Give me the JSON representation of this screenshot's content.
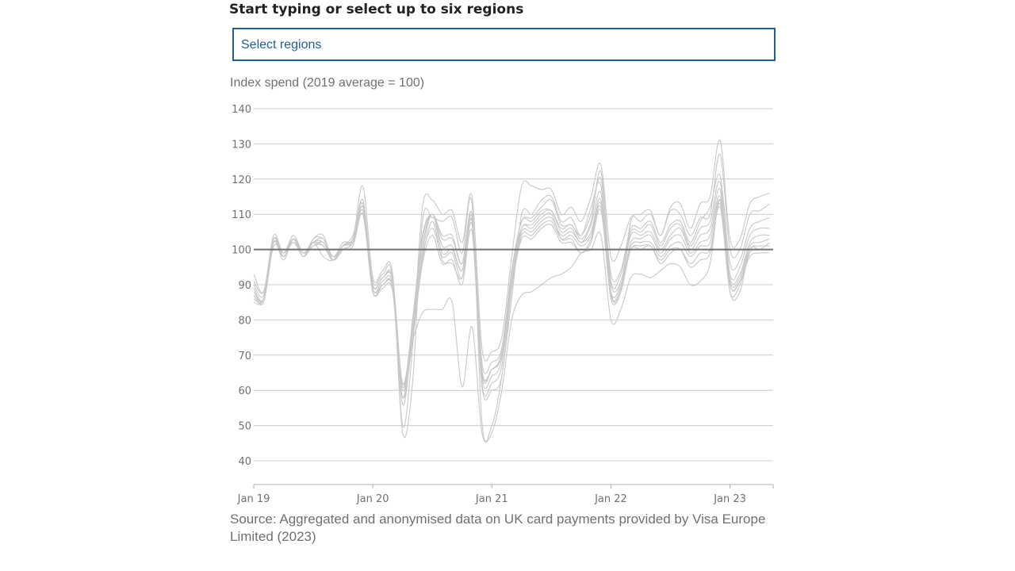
{
  "form": {
    "label": "Start typing or select up to six regions",
    "placeholder": "Select regions"
  },
  "source_text": "Source: Aggregated and anonymised data on UK card payments provided by Visa Europe Limited (2023)",
  "colors": {
    "region_line": "#c8c8c8",
    "reference_line": "#707070",
    "grid": "#cccccc",
    "text": "#707070",
    "accent": "#206095"
  },
  "chart_data": {
    "type": "line",
    "title": "Index spend (2019 average = 100)",
    "xlabel": "",
    "ylabel": "",
    "ylim": [
      35,
      141
    ],
    "yticks": [
      40,
      50,
      60,
      70,
      80,
      90,
      100,
      110,
      120,
      130,
      140
    ],
    "xlim": [
      "2019-01",
      "2023-05"
    ],
    "xticks": [
      {
        "date": "2019-01",
        "label": "Jan 19"
      },
      {
        "date": "2020-01",
        "label": "Jan 20"
      },
      {
        "date": "2021-01",
        "label": "Jan 21"
      },
      {
        "date": "2022-01",
        "label": "Jan 22"
      },
      {
        "date": "2023-01",
        "label": "Jan 23"
      }
    ],
    "grid": true,
    "legend": "none",
    "reference_line": 100,
    "x": [
      "2019-01",
      "2019-02",
      "2019-03",
      "2019-04",
      "2019-05",
      "2019-06",
      "2019-07",
      "2019-08",
      "2019-09",
      "2019-10",
      "2019-11",
      "2019-12",
      "2020-01",
      "2020-02",
      "2020-03",
      "2020-04",
      "2020-05",
      "2020-06",
      "2020-07",
      "2020-08",
      "2020-09",
      "2020-10",
      "2020-11",
      "2020-12",
      "2021-01",
      "2021-02",
      "2021-03",
      "2021-04",
      "2021-05",
      "2021-06",
      "2021-07",
      "2021-08",
      "2021-09",
      "2021-10",
      "2021-11",
      "2021-12",
      "2022-01",
      "2022-02",
      "2022-03",
      "2022-04",
      "2022-05",
      "2022-06",
      "2022-07",
      "2022-08",
      "2022-09",
      "2022-10",
      "2022-11",
      "2022-12",
      "2023-01",
      "2023-02",
      "2023-03",
      "2023-04",
      "2023-05"
    ],
    "series": [
      {
        "values": [
          93,
          88,
          104,
          99,
          104,
          99,
          102,
          103,
          98,
          101,
          103,
          118,
          92,
          94,
          93,
          50,
          72,
          112,
          114,
          110,
          111,
          102,
          115,
          72,
          71,
          75,
          98,
          118,
          118,
          117,
          117,
          110,
          112,
          108,
          115,
          124,
          98,
          101,
          109,
          110,
          111,
          104,
          112,
          113,
          106,
          113,
          115,
          131,
          103,
          103,
          113,
          115,
          116
        ]
      },
      {
        "values": [
          91,
          88,
          103,
          98,
          103,
          98,
          103,
          104,
          97,
          101,
          104,
          113,
          91,
          93,
          92,
          48,
          62,
          108,
          109,
          108,
          109,
          99,
          113,
          51,
          50,
          64,
          86,
          110,
          110,
          114,
          115,
          108,
          109,
          104,
          112,
          118,
          88,
          88,
          108,
          108,
          110,
          104,
          111,
          110,
          104,
          109,
          110,
          127,
          100,
          100,
          110,
          111,
          113
        ]
      },
      {
        "values": [
          90,
          87,
          103,
          98,
          103,
          98,
          103,
          103,
          98,
          102,
          103,
          114,
          90,
          92,
          91,
          58,
          80,
          104,
          110,
          104,
          104,
          96,
          110,
          68,
          68,
          72,
          94,
          108,
          109,
          112,
          114,
          107,
          107,
          104,
          110,
          120,
          93,
          94,
          106,
          106,
          108,
          102,
          107,
          108,
          102,
          108,
          112,
          121,
          96,
          97,
          106,
          108,
          109
        ]
      },
      {
        "values": [
          89,
          86,
          103,
          99,
          103,
          99,
          102,
          103,
          98,
          101,
          103,
          113,
          90,
          92,
          91,
          62,
          79,
          103,
          110,
          103,
          103,
          96,
          110,
          66,
          66,
          71,
          94,
          108,
          108,
          111,
          111,
          106,
          107,
          103,
          108,
          122,
          91,
          93,
          105,
          105,
          107,
          101,
          106,
          107,
          101,
          106,
          108,
          119,
          93,
          95,
          104,
          106,
          106
        ]
      },
      {
        "values": [
          88,
          86,
          102,
          99,
          103,
          98,
          102,
          102,
          97,
          100,
          102,
          112,
          89,
          91,
          90,
          60,
          78,
          101,
          110,
          101,
          101,
          94,
          109,
          64,
          64,
          69,
          93,
          106,
          107,
          110,
          111,
          105,
          106,
          102,
          107,
          116,
          90,
          91,
          104,
          104,
          105,
          100,
          104,
          106,
          100,
          104,
          106,
          117,
          92,
          93,
          102,
          104,
          104
        ]
      },
      {
        "values": [
          88,
          86,
          102,
          98,
          103,
          99,
          101,
          102,
          98,
          100,
          102,
          111,
          89,
          90,
          89,
          56,
          76,
          99,
          110,
          99,
          100,
          94,
          108,
          62,
          62,
          67,
          91,
          105,
          105,
          108,
          109,
          104,
          105,
          102,
          105,
          114,
          87,
          89,
          102,
          103,
          104,
          99,
          103,
          104,
          99,
          102,
          104,
          115,
          91,
          92,
          101,
          102,
          103
        ]
      },
      {
        "values": [
          87,
          86,
          102,
          99,
          102,
          99,
          101,
          102,
          97,
          100,
          102,
          112,
          88,
          90,
          89,
          61,
          77,
          98,
          106,
          98,
          99,
          92,
          107,
          66,
          66,
          70,
          90,
          104,
          104,
          107,
          108,
          103,
          104,
          101,
          104,
          113,
          88,
          90,
          101,
          102,
          102,
          98,
          101,
          102,
          98,
          101,
          102,
          114,
          90,
          91,
          100,
          101,
          101
        ]
      },
      {
        "values": [
          87,
          85,
          101,
          98,
          102,
          98,
          101,
          101,
          97,
          100,
          101,
          110,
          88,
          89,
          88,
          58,
          74,
          96,
          104,
          96,
          97,
          90,
          105,
          61,
          60,
          64,
          89,
          103,
          103,
          106,
          107,
          102,
          102,
          99,
          102,
          111,
          86,
          88,
          100,
          100,
          101,
          96,
          99,
          100,
          96,
          99,
          100,
          112,
          88,
          90,
          99,
          100,
          100
        ]
      },
      {
        "values": [
          86,
          86,
          102,
          97,
          103,
          99,
          102,
          98,
          97,
          101,
          103,
          111,
          90,
          92,
          92,
          62,
          76,
          97,
          108,
          97,
          96,
          92,
          108,
          65,
          66,
          70,
          91,
          106,
          106,
          109,
          110,
          103,
          103,
          99,
          103,
          112,
          87,
          89,
          100,
          101,
          101,
          97,
          100,
          100,
          95,
          97,
          99,
          113,
          90,
          91,
          98,
          99,
          99
        ]
      },
      {
        "values": [
          85,
          86,
          103,
          98,
          103,
          99,
          102,
          101,
          97,
          101,
          102,
          110,
          88,
          90,
          89,
          62,
          74,
          82,
          83,
          83,
          85,
          61,
          78,
          48,
          48,
          60,
          80,
          87,
          88,
          90,
          92,
          93,
          95,
          99,
          100,
          104,
          80,
          83,
          92,
          93,
          92,
          94,
          96,
          95,
          90,
          91,
          96,
          114,
          88,
          88,
          100,
          100,
          102
        ]
      }
    ]
  }
}
